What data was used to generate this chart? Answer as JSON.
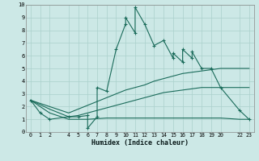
{
  "xlabel": "Humidex (Indice chaleur)",
  "bg_color": "#cce8e6",
  "grid_color": "#aad0cc",
  "line_color": "#1a6b5a",
  "xlim": [
    -0.5,
    23.5
  ],
  "ylim": [
    0,
    10.0
  ],
  "xticks": [
    0,
    1,
    2,
    4,
    5,
    6,
    7,
    8,
    9,
    10,
    11,
    12,
    13,
    14,
    15,
    16,
    17,
    18,
    19,
    20,
    22,
    23
  ],
  "yticks": [
    0,
    1,
    2,
    3,
    4,
    5,
    6,
    7,
    8,
    9,
    10
  ],
  "s1_x": [
    0,
    1,
    2,
    4,
    5,
    6,
    6,
    7,
    7,
    8,
    9,
    10,
    10,
    11,
    11,
    12,
    13,
    14,
    15,
    15,
    16,
    16,
    17,
    17,
    18,
    19,
    20,
    22,
    23
  ],
  "s1_y": [
    2.5,
    1.5,
    1.0,
    1.2,
    1.2,
    1.3,
    0.3,
    1.2,
    3.5,
    3.2,
    6.5,
    8.5,
    9.0,
    7.8,
    9.8,
    8.5,
    6.8,
    7.2,
    5.8,
    6.2,
    5.5,
    6.5,
    5.8,
    6.3,
    5.0,
    5.0,
    3.5,
    1.7,
    1.0
  ],
  "s2_x": [
    0,
    2,
    4,
    5,
    6,
    7,
    8,
    9,
    10,
    11,
    12,
    13,
    14,
    15,
    16,
    17,
    18,
    19,
    20,
    22,
    23
  ],
  "s2_y": [
    2.5,
    2.0,
    1.5,
    1.8,
    2.1,
    2.4,
    2.7,
    3.0,
    3.3,
    3.5,
    3.7,
    4.0,
    4.2,
    4.4,
    4.6,
    4.7,
    4.8,
    4.9,
    5.0,
    5.0,
    5.0
  ],
  "s3_x": [
    0,
    2,
    4,
    5,
    6,
    7,
    8,
    9,
    10,
    11,
    12,
    13,
    14,
    15,
    16,
    17,
    18,
    19,
    20,
    22,
    23
  ],
  "s3_y": [
    2.5,
    1.8,
    1.2,
    1.3,
    1.5,
    1.7,
    1.9,
    2.1,
    2.3,
    2.5,
    2.7,
    2.9,
    3.1,
    3.2,
    3.3,
    3.4,
    3.5,
    3.5,
    3.5,
    3.5,
    3.5
  ],
  "s4_x": [
    0,
    2,
    4,
    5,
    6,
    8,
    10,
    20,
    22,
    23
  ],
  "s4_y": [
    2.5,
    1.5,
    1.0,
    1.0,
    1.0,
    1.1,
    1.1,
    1.1,
    1.0,
    1.0
  ]
}
